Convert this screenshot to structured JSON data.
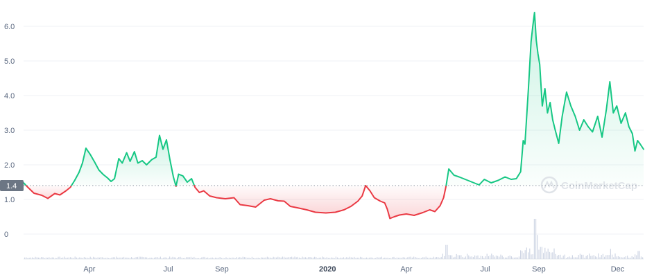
{
  "chart_data": {
    "type": "area",
    "title": "",
    "xlabel": "",
    "ylabel": "",
    "baseline": 1.4,
    "baseline_label": "1.4",
    "ylim": [
      -0.7,
      6.8
    ],
    "y_ticks": [
      {
        "value": 6,
        "label": "6.0"
      },
      {
        "value": 5,
        "label": "5.0"
      },
      {
        "value": 4,
        "label": "4.0"
      },
      {
        "value": 3,
        "label": "3.0"
      },
      {
        "value": 2,
        "label": "2.0"
      },
      {
        "value": 1,
        "label": "1.0"
      },
      {
        "value": 0,
        "label": "0"
      }
    ],
    "x_domain": [
      "2019-01-15",
      "2020-12-31"
    ],
    "x_ticks": [
      {
        "date": "2019-04-01",
        "label": "Apr",
        "bold": false
      },
      {
        "date": "2019-07-01",
        "label": "Jul",
        "bold": false
      },
      {
        "date": "2019-09-01",
        "label": "Sep",
        "bold": false
      },
      {
        "date": "2020-01-01",
        "label": "2020",
        "bold": true
      },
      {
        "date": "2020-04-01",
        "label": "Apr",
        "bold": false
      },
      {
        "date": "2020-07-01",
        "label": "Jul",
        "bold": false
      },
      {
        "date": "2020-09-01",
        "label": "Sep",
        "bold": false
      },
      {
        "date": "2020-12-01",
        "label": "Dec",
        "bold": false
      }
    ],
    "colors": {
      "up": "#16c784",
      "down": "#ea3943",
      "up_fill": "rgba(22,199,132,0.10)",
      "down_fill": "rgba(234,57,67,0.12)",
      "volume": "#cfd6e4",
      "grid": "#eff2f5",
      "baseline_badge": "#6c7684"
    },
    "series": [
      {
        "values": [
          [
            "2019-01-15",
            1.48
          ],
          [
            "2019-01-20",
            1.35
          ],
          [
            "2019-01-27",
            1.18
          ],
          [
            "2019-02-05",
            1.12
          ],
          [
            "2019-02-12",
            1.03
          ],
          [
            "2019-02-20",
            1.17
          ],
          [
            "2019-02-26",
            1.13
          ],
          [
            "2019-03-05",
            1.25
          ],
          [
            "2019-03-10",
            1.35
          ],
          [
            "2019-03-15",
            1.55
          ],
          [
            "2019-03-20",
            1.78
          ],
          [
            "2019-03-24",
            2.05
          ],
          [
            "2019-03-28",
            2.48
          ],
          [
            "2019-04-02",
            2.3
          ],
          [
            "2019-04-07",
            2.08
          ],
          [
            "2019-04-12",
            1.85
          ],
          [
            "2019-04-17",
            1.72
          ],
          [
            "2019-04-22",
            1.62
          ],
          [
            "2019-04-26",
            1.52
          ],
          [
            "2019-04-30",
            1.6
          ],
          [
            "2019-05-05",
            2.18
          ],
          [
            "2019-05-09",
            2.05
          ],
          [
            "2019-05-14",
            2.35
          ],
          [
            "2019-05-18",
            2.1
          ],
          [
            "2019-05-23",
            2.38
          ],
          [
            "2019-05-27",
            2.05
          ],
          [
            "2019-06-01",
            2.12
          ],
          [
            "2019-06-06",
            2.0
          ],
          [
            "2019-06-12",
            2.15
          ],
          [
            "2019-06-17",
            2.22
          ],
          [
            "2019-06-21",
            2.85
          ],
          [
            "2019-06-25",
            2.45
          ],
          [
            "2019-06-29",
            2.72
          ],
          [
            "2019-07-03",
            2.15
          ],
          [
            "2019-07-07",
            1.65
          ],
          [
            "2019-07-10",
            1.38
          ],
          [
            "2019-07-13",
            1.73
          ],
          [
            "2019-07-18",
            1.68
          ],
          [
            "2019-07-23",
            1.5
          ],
          [
            "2019-07-28",
            1.6
          ],
          [
            "2019-08-01",
            1.35
          ],
          [
            "2019-08-06",
            1.2
          ],
          [
            "2019-08-11",
            1.25
          ],
          [
            "2019-08-18",
            1.1
          ],
          [
            "2019-08-26",
            1.05
          ],
          [
            "2019-09-05",
            1.02
          ],
          [
            "2019-09-15",
            1.05
          ],
          [
            "2019-09-22",
            0.85
          ],
          [
            "2019-10-01",
            0.82
          ],
          [
            "2019-10-10",
            0.78
          ],
          [
            "2019-10-20",
            0.98
          ],
          [
            "2019-10-27",
            1.02
          ],
          [
            "2019-11-05",
            0.96
          ],
          [
            "2019-11-12",
            0.95
          ],
          [
            "2019-11-19",
            0.8
          ],
          [
            "2019-11-27",
            0.76
          ],
          [
            "2019-12-08",
            0.7
          ],
          [
            "2019-12-18",
            0.63
          ],
          [
            "2019-12-30",
            0.61
          ],
          [
            "2020-01-10",
            0.63
          ],
          [
            "2020-01-20",
            0.7
          ],
          [
            "2020-01-28",
            0.8
          ],
          [
            "2020-02-05",
            0.95
          ],
          [
            "2020-02-10",
            1.1
          ],
          [
            "2020-02-14",
            1.4
          ],
          [
            "2020-02-19",
            1.25
          ],
          [
            "2020-02-24",
            1.05
          ],
          [
            "2020-03-02",
            0.95
          ],
          [
            "2020-03-07",
            0.9
          ],
          [
            "2020-03-10",
            0.72
          ],
          [
            "2020-03-13",
            0.45
          ],
          [
            "2020-03-18",
            0.5
          ],
          [
            "2020-03-24",
            0.55
          ],
          [
            "2020-04-01",
            0.58
          ],
          [
            "2020-04-10",
            0.54
          ],
          [
            "2020-04-20",
            0.62
          ],
          [
            "2020-04-28",
            0.7
          ],
          [
            "2020-05-04",
            0.65
          ],
          [
            "2020-05-10",
            0.82
          ],
          [
            "2020-05-14",
            1.05
          ],
          [
            "2020-05-17",
            1.4
          ],
          [
            "2020-05-20",
            1.88
          ],
          [
            "2020-05-26",
            1.7
          ],
          [
            "2020-06-01",
            1.65
          ],
          [
            "2020-06-08",
            1.58
          ],
          [
            "2020-06-16",
            1.5
          ],
          [
            "2020-06-24",
            1.42
          ],
          [
            "2020-06-30",
            1.58
          ],
          [
            "2020-07-08",
            1.48
          ],
          [
            "2020-07-16",
            1.55
          ],
          [
            "2020-07-24",
            1.65
          ],
          [
            "2020-07-31",
            1.58
          ],
          [
            "2020-08-06",
            1.6
          ],
          [
            "2020-08-11",
            1.8
          ],
          [
            "2020-08-14",
            2.7
          ],
          [
            "2020-08-16",
            2.6
          ],
          [
            "2020-08-18",
            3.4
          ],
          [
            "2020-08-20",
            4.2
          ],
          [
            "2020-08-23",
            5.55
          ],
          [
            "2020-08-25",
            6.0
          ],
          [
            "2020-08-27",
            6.4
          ],
          [
            "2020-08-29",
            5.6
          ],
          [
            "2020-08-31",
            5.2
          ],
          [
            "2020-09-02",
            4.9
          ],
          [
            "2020-09-05",
            3.7
          ],
          [
            "2020-09-08",
            4.2
          ],
          [
            "2020-09-11",
            3.5
          ],
          [
            "2020-09-14",
            3.8
          ],
          [
            "2020-09-17",
            3.3
          ],
          [
            "2020-09-20",
            3.0
          ],
          [
            "2020-09-24",
            2.62
          ],
          [
            "2020-09-28",
            3.4
          ],
          [
            "2020-10-03",
            4.1
          ],
          [
            "2020-10-08",
            3.7
          ],
          [
            "2020-10-13",
            3.4
          ],
          [
            "2020-10-18",
            3.0
          ],
          [
            "2020-10-23",
            3.3
          ],
          [
            "2020-10-28",
            3.1
          ],
          [
            "2020-11-02",
            2.95
          ],
          [
            "2020-11-08",
            3.4
          ],
          [
            "2020-11-13",
            2.8
          ],
          [
            "2020-11-18",
            3.6
          ],
          [
            "2020-11-22",
            4.4
          ],
          [
            "2020-11-26",
            3.5
          ],
          [
            "2020-11-30",
            3.7
          ],
          [
            "2020-12-05",
            3.2
          ],
          [
            "2020-12-10",
            3.5
          ],
          [
            "2020-12-14",
            3.1
          ],
          [
            "2020-12-18",
            2.9
          ],
          [
            "2020-12-21",
            2.4
          ],
          [
            "2020-12-24",
            2.7
          ],
          [
            "2020-12-27",
            2.6
          ],
          [
            "2020-12-31",
            2.45
          ]
        ]
      }
    ],
    "volume_peaks": [
      [
        "2020-05-17",
        0.35
      ],
      [
        "2020-08-27",
        1.0
      ],
      [
        "2020-08-30",
        0.6
      ],
      [
        "2020-09-03",
        0.3
      ],
      [
        "2020-11-22",
        0.25
      ],
      [
        "2020-12-25",
        0.2
      ]
    ]
  },
  "watermark": {
    "text": "CoinMarketCap"
  }
}
